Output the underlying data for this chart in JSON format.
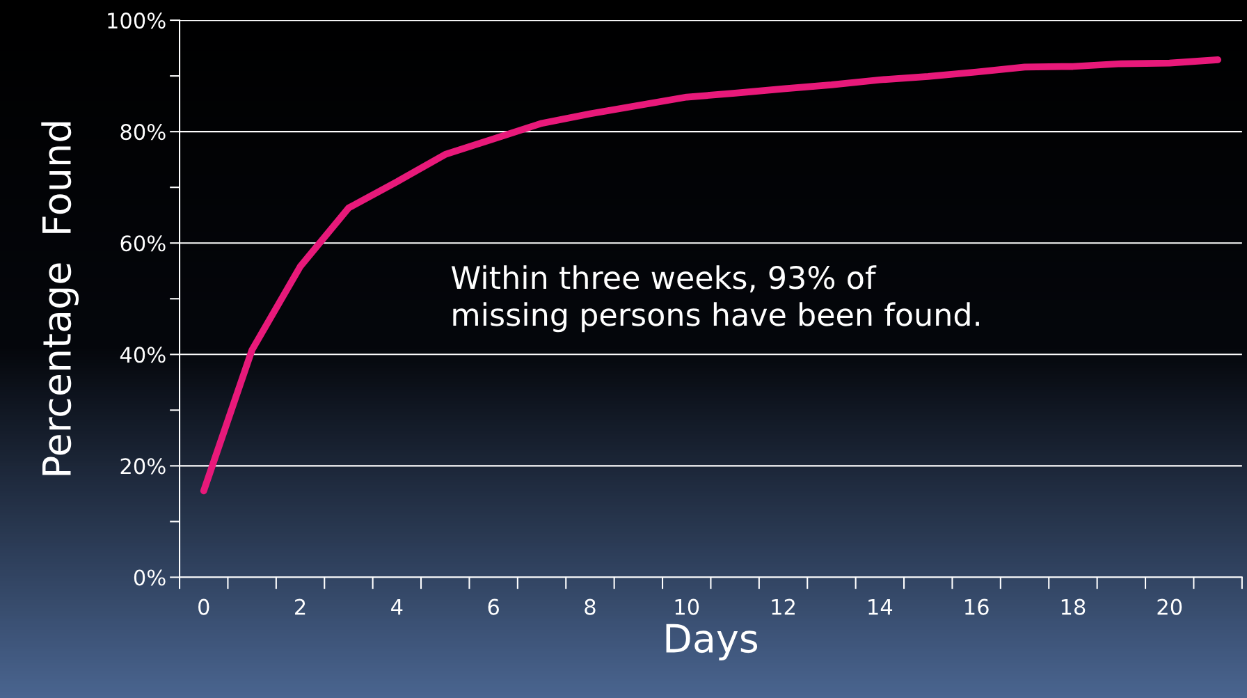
{
  "chart_data": {
    "type": "line",
    "xlabel": "Days",
    "ylabel": "Percentage  Found",
    "categories": [
      "0",
      null,
      "2",
      null,
      "4",
      null,
      "6",
      null,
      "8",
      null,
      "10",
      null,
      "12",
      null,
      "14",
      null,
      "16",
      null,
      "18",
      null,
      "20",
      null
    ],
    "series": [
      {
        "color": "#e8197a",
        "values": [
          15.5,
          40.8,
          55.8,
          66.3,
          71,
          75.9,
          78.7,
          81.5,
          83.2,
          84.7,
          86.2,
          86.9,
          87.7,
          88.4,
          89.3,
          89.9,
          90.7,
          91.6,
          91.7,
          92.2,
          92.3,
          92.9
        ]
      }
    ],
    "ylim": [
      0,
      100
    ],
    "yticks": [
      {
        "value": 0,
        "label": "0%"
      },
      {
        "value": 20,
        "label": "20%"
      },
      {
        "value": 40,
        "label": "40%"
      },
      {
        "value": 60,
        "label": "60%"
      },
      {
        "value": 80,
        "label": "80%"
      },
      {
        "value": 100,
        "label": "100%"
      }
    ],
    "grid": "y",
    "marker": "none",
    "line_style": "solid",
    "legend": false,
    "annotations": [
      "Within three weeks, 93% of\nmissing persons have been found."
    ]
  }
}
